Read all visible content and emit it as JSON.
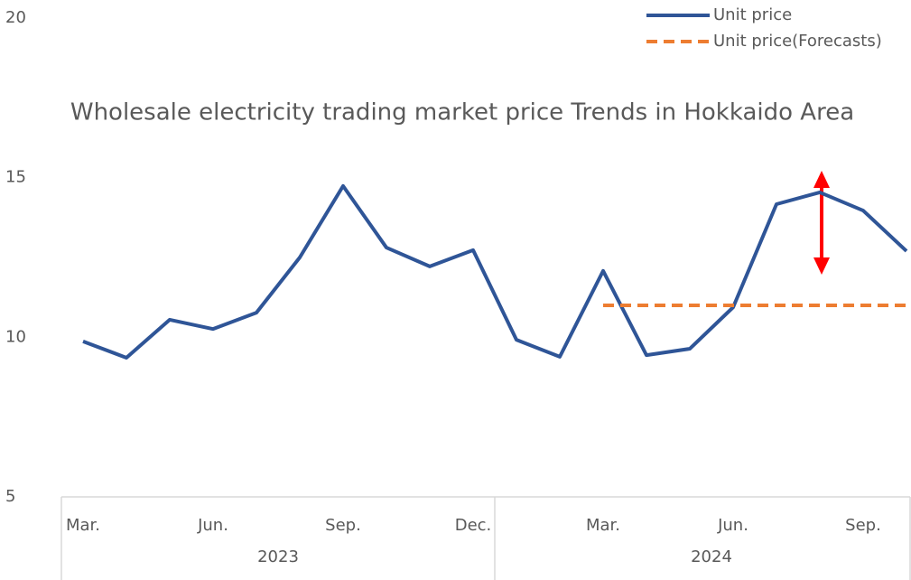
{
  "chart_data": {
    "type": "line",
    "title": "Wholesale electricity trading market price Trends in Hokkaido Area",
    "categories": [
      "Mar.",
      null,
      null,
      "Jun.",
      null,
      null,
      "Sep.",
      null,
      null,
      "Dec.",
      null,
      null,
      "Mar.",
      null,
      null,
      "Jun.",
      null,
      null,
      "Sep.",
      null
    ],
    "years": [
      "2023",
      "2024"
    ],
    "series": [
      {
        "name": "Unit price",
        "color": "#2f5597",
        "dash": false,
        "values": [
          9.87,
          9.36,
          10.55,
          10.26,
          10.77,
          12.5,
          14.74,
          12.81,
          12.22,
          12.73,
          9.92,
          9.39,
          12.08,
          9.44,
          9.64,
          10.94,
          14.17,
          14.54,
          13.97,
          12.7
        ]
      },
      {
        "name": "Unit price(Forecasts)",
        "color": "#ed7d31",
        "dash": true,
        "values": [
          null,
          null,
          null,
          null,
          null,
          null,
          null,
          null,
          null,
          null,
          null,
          null,
          11.0,
          11.0,
          11.0,
          11.0,
          11.0,
          11.0,
          11.0,
          11.0
        ]
      }
    ],
    "ylim": [
      5,
      20
    ],
    "yticks": [
      5,
      10,
      15,
      20
    ],
    "grid": false,
    "legend": "top-right"
  }
}
